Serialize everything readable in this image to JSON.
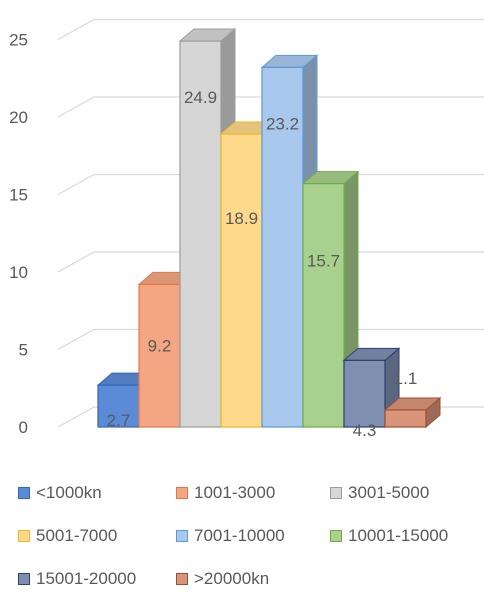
{
  "chart_data": {
    "type": "bar",
    "style": "3d-clustered-column",
    "title": "",
    "xlabel": "",
    "ylabel": "",
    "ylim": [
      0,
      25
    ],
    "yticks": [
      0,
      5,
      10,
      15,
      20,
      25
    ],
    "grid": true,
    "legend_position": "bottom",
    "series": [
      {
        "name": "<1000kn",
        "value": 2.7,
        "label": "2.7",
        "color": "#5B8BD6",
        "edge": "#3A64B0"
      },
      {
        "name": "1001-3000",
        "value": 9.2,
        "label": "9.2",
        "color": "#F4A582",
        "edge": "#E07A45"
      },
      {
        "name": "3001-5000",
        "value": 24.9,
        "label": "24.9",
        "color": "#D6D6D6",
        "edge": "#9C9C9C"
      },
      {
        "name": "5001-7000",
        "value": 18.9,
        "label": "18.9",
        "color": "#FFD98A",
        "edge": "#E8B82A"
      },
      {
        "name": "7001-10000",
        "value": 23.2,
        "label": "23.2",
        "color": "#A9C8EE",
        "edge": "#5B9BD5"
      },
      {
        "name": "10001-15000",
        "value": 15.7,
        "label": "15.7",
        "color": "#A9D18E",
        "edge": "#6FAA47"
      },
      {
        "name": "15001-20000",
        "value": 4.3,
        "label": "4.3",
        "color": "#7F8FB2",
        "edge": "#2F3F6B"
      },
      {
        "name": ">20000kn",
        "value": 1.1,
        "label": "1.1",
        "color": "#D9957A",
        "edge": "#A0502F"
      }
    ]
  }
}
